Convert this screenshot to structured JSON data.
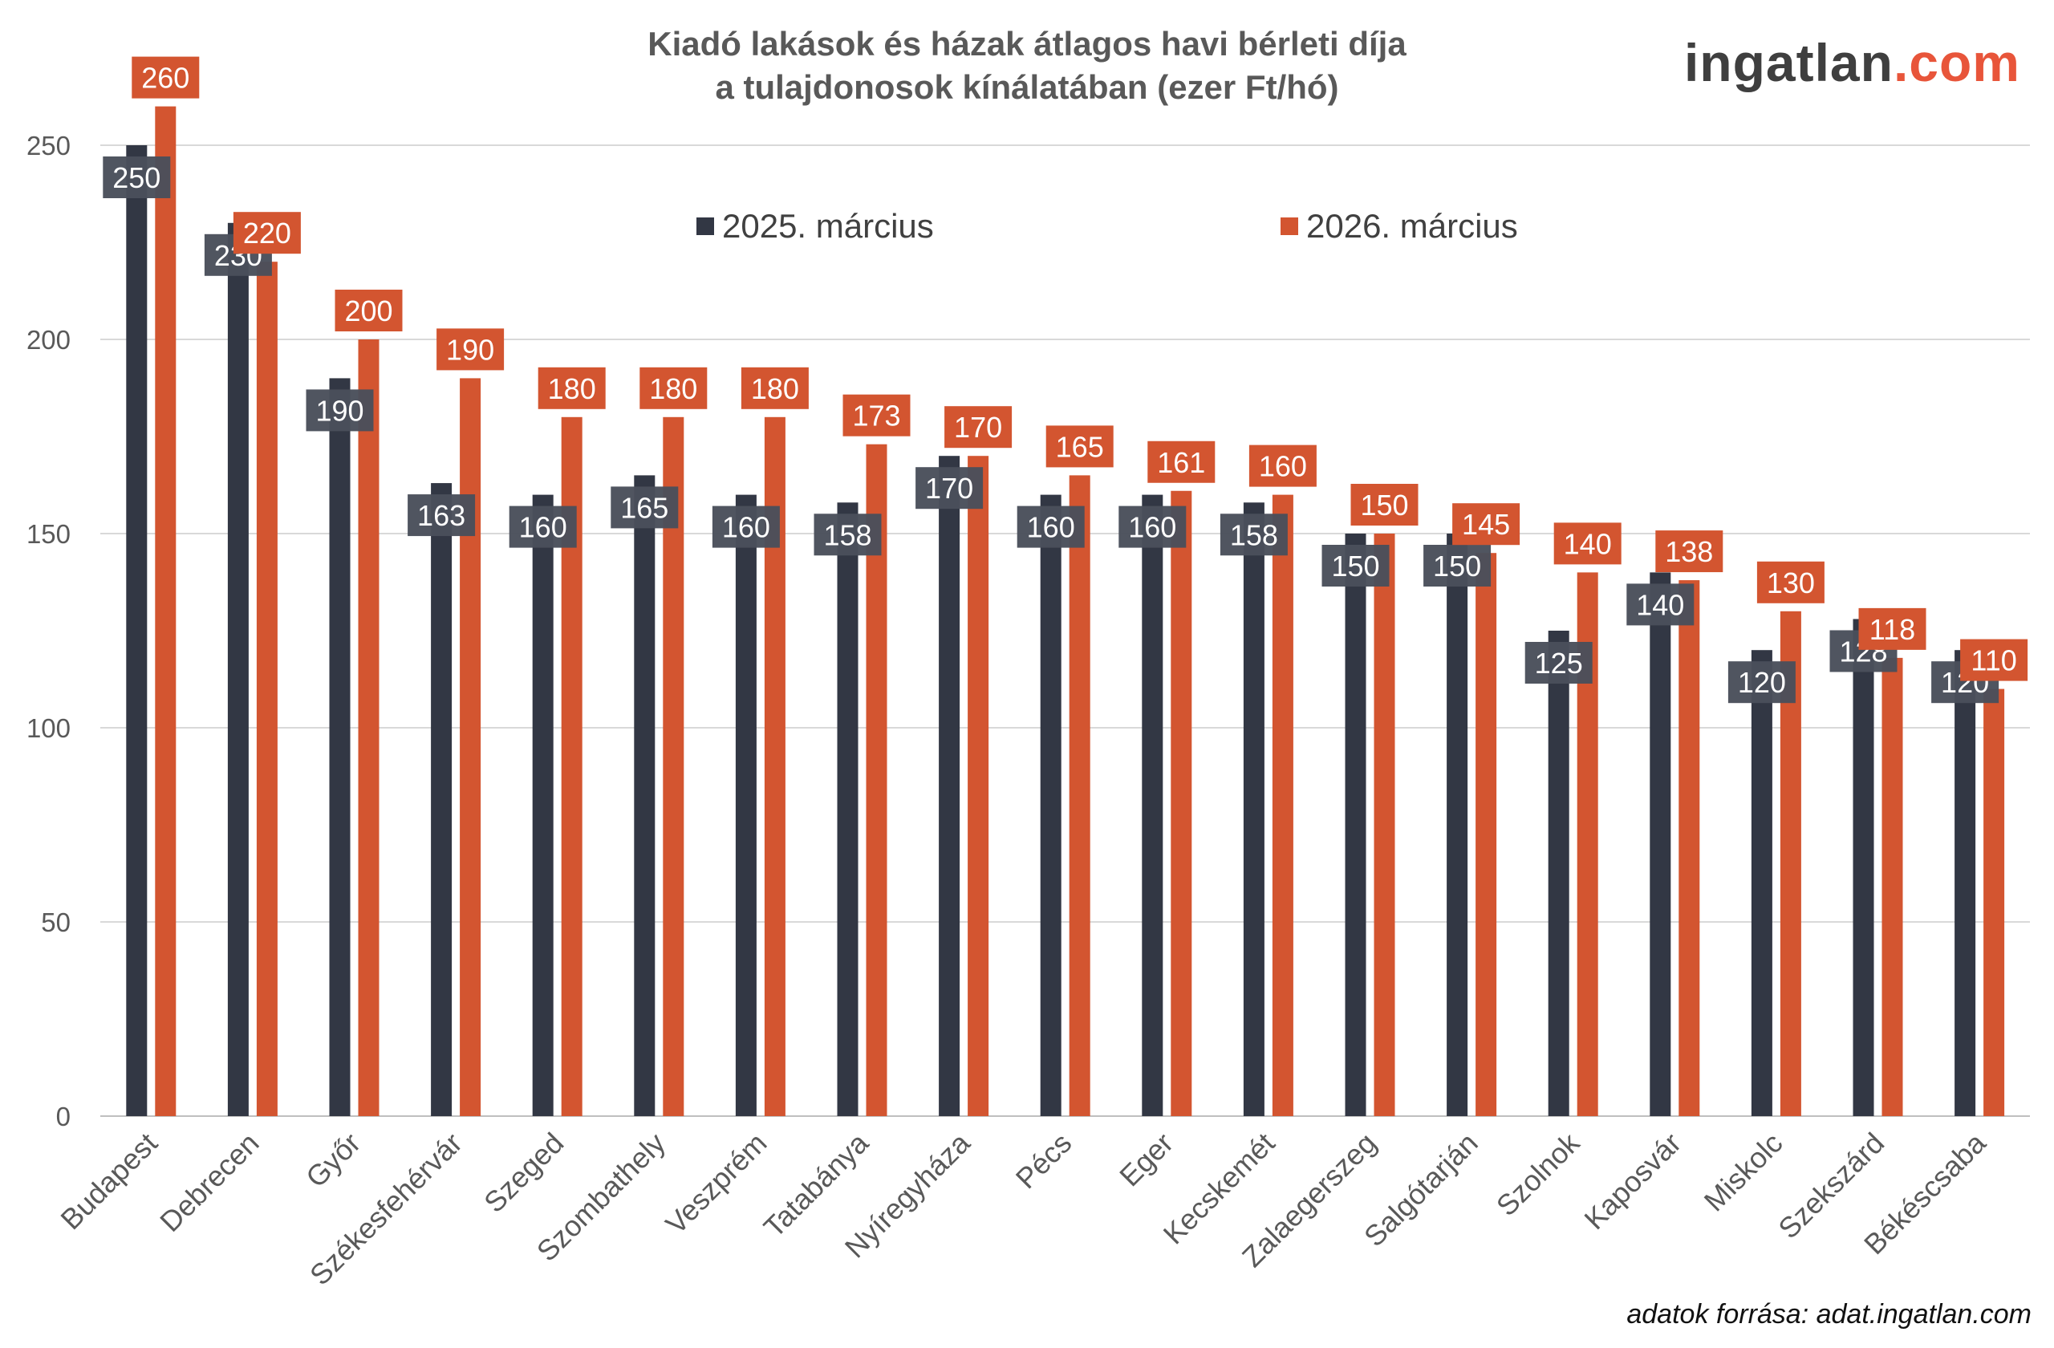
{
  "title_line1": "Kiadó lakások és házak átlagos havi bérleti díja",
  "title_line2": "a tulajdonosok kínálatában (ezer Ft/hó)",
  "logo": {
    "main": "ingatlan",
    "suffix": ".com"
  },
  "source": "adatok forrása: adat.ingatlan.com",
  "colors": {
    "series1": "#323744",
    "series2": "#d35530",
    "label1": "#4a4f5b",
    "grid": "#d9d9d9"
  },
  "chart_data": {
    "type": "bar",
    "title": "Kiadó lakások és házak átlagos havi bérleti díja a tulajdonosok kínálatában (ezer Ft/hó)",
    "categories": [
      "Budapest",
      "Debrecen",
      "Győr",
      "Székesfehérvár",
      "Szeged",
      "Szombathely",
      "Veszprém",
      "Tatabánya",
      "Nyíregyháza",
      "Pécs",
      "Eger",
      "Kecskemét",
      "Zalaegerszeg",
      "Salgótarján",
      "Szolnok",
      "Kaposvár",
      "Miskolc",
      "Szekszárd",
      "Békéscsaba"
    ],
    "series": [
      {
        "name": "2025. március",
        "values": [
          250,
          230,
          190,
          163,
          160,
          165,
          160,
          158,
          170,
          160,
          160,
          158,
          150,
          150,
          125,
          140,
          120,
          128,
          120
        ]
      },
      {
        "name": "2026. március",
        "values": [
          260,
          220,
          200,
          190,
          180,
          180,
          180,
          173,
          170,
          165,
          161,
          160,
          150,
          145,
          140,
          138,
          130,
          118,
          110
        ]
      }
    ],
    "yticks": [
      0,
      50,
      100,
      150,
      200,
      250
    ],
    "ylim": [
      0,
      260
    ],
    "grid": true,
    "legend": "top-center",
    "data_labels": true
  }
}
